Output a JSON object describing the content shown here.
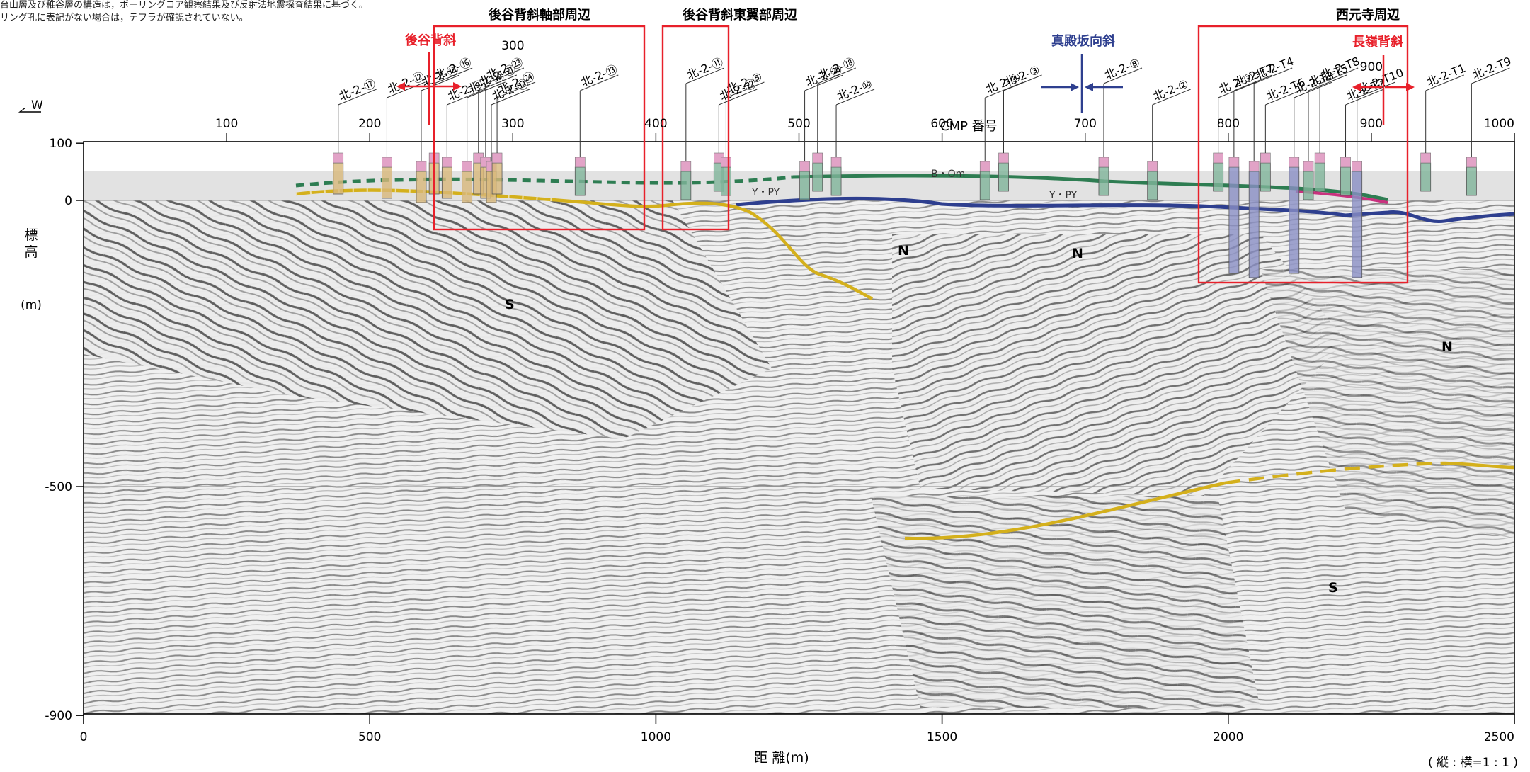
{
  "notes": [
    "台山層及び稚谷層の構造は，ボーリングコア観察結果及び反射法地震探査結果に基づく。",
    "リング孔に表記がない場合は，テフラが確認されていない。"
  ],
  "direction_west": "W",
  "regions": [
    {
      "label": "後谷背斜軸部周辺"
    },
    {
      "label": "後谷背斜東翼部周辺"
    },
    {
      "label": "西元寺周辺"
    }
  ],
  "structures": [
    {
      "label": "後谷背斜",
      "type": "anticline",
      "color": "#e8202a"
    },
    {
      "label": "真殿坂向斜",
      "type": "syncline",
      "color": "#2e3f8f"
    },
    {
      "label": "長嶺背斜",
      "type": "anticline",
      "color": "#e8202a"
    }
  ],
  "cmp": {
    "label": "CMP 番号",
    "ticks": [
      100,
      200,
      300,
      400,
      500,
      600,
      700,
      800,
      900,
      1000
    ]
  },
  "elevation": {
    "label_chars": [
      "標",
      "高"
    ],
    "unit": "(m)",
    "ticks": [
      100,
      0,
      -500,
      -900
    ]
  },
  "distance": {
    "label": "距 離(m)",
    "ticks": [
      0,
      500,
      1000,
      1500,
      2000,
      2500
    ]
  },
  "scale_note": "( 縦 : 横=1 : 1 )",
  "horizon_labels": [
    "B・Om",
    "Y・PY",
    "Y・PY"
  ],
  "unit_labels": [
    "S",
    "N",
    "N",
    "N",
    "S"
  ],
  "boreholes": [
    {
      "name": "北-2-⑰",
      "cmp": 178
    },
    {
      "name": "北-2-⑫",
      "cmp": 212
    },
    {
      "name": "北-2-⑮",
      "cmp": 236
    },
    {
      "name": "北-2-⑯",
      "cmp": 245
    },
    {
      "name": "北-2-⑨",
      "cmp": 254
    },
    {
      "name": "北-2-⑲",
      "cmp": 268
    },
    {
      "name": "北-2-㉑",
      "cmp": 276
    },
    {
      "name": "北-2-㉓",
      "cmp": 281
    },
    {
      "name": "北-2-⑭",
      "cmp": 285
    },
    {
      "name": "北-2-㉔",
      "cmp": 289
    },
    {
      "name": "北-2-⑬",
      "cmp": 347
    },
    {
      "name": "北-2-⑪",
      "cmp": 421
    },
    {
      "name": "北-2-㉒",
      "cmp": 444
    },
    {
      "name": "北-2-⑤",
      "cmp": 449
    },
    {
      "name": "北-2-⑳",
      "cmp": 504
    },
    {
      "name": "北-2-⑱",
      "cmp": 513
    },
    {
      "name": "北-2-⑩",
      "cmp": 526
    },
    {
      "name": "北 2-④",
      "cmp": 630
    },
    {
      "name": "北-2-③",
      "cmp": 643
    },
    {
      "name": "北-2-⑧",
      "cmp": 713
    },
    {
      "name": "北-2-②",
      "cmp": 747
    },
    {
      "name": "北 2-⑦",
      "cmp": 793
    },
    {
      "name": "北-2-T7",
      "cmp": 804
    },
    {
      "name": "北-2-T4",
      "cmp": 818
    },
    {
      "name": "北-2-T6",
      "cmp": 826
    },
    {
      "name": "北-2-T3",
      "cmp": 846
    },
    {
      "name": "北-2-T5",
      "cmp": 856
    },
    {
      "name": "北-2-T8",
      "cmp": 864
    },
    {
      "name": "北-2-T2",
      "cmp": 882
    },
    {
      "name": "北-2-T10",
      "cmp": 890
    },
    {
      "name": "北-2-T1",
      "cmp": 938
    },
    {
      "name": "北-2-T9",
      "cmp": 970
    }
  ],
  "colors": {
    "box": "#e8202a",
    "green_horizon": "#2e7d52",
    "blue_horizon": "#2e3f8f",
    "yellow_horizon": "#d4b01c",
    "pink_core": "#e2a3c7",
    "green_core": "#7fb49a",
    "blue_core": "#8a8fc4",
    "tan_core": "#d8b87a"
  }
}
